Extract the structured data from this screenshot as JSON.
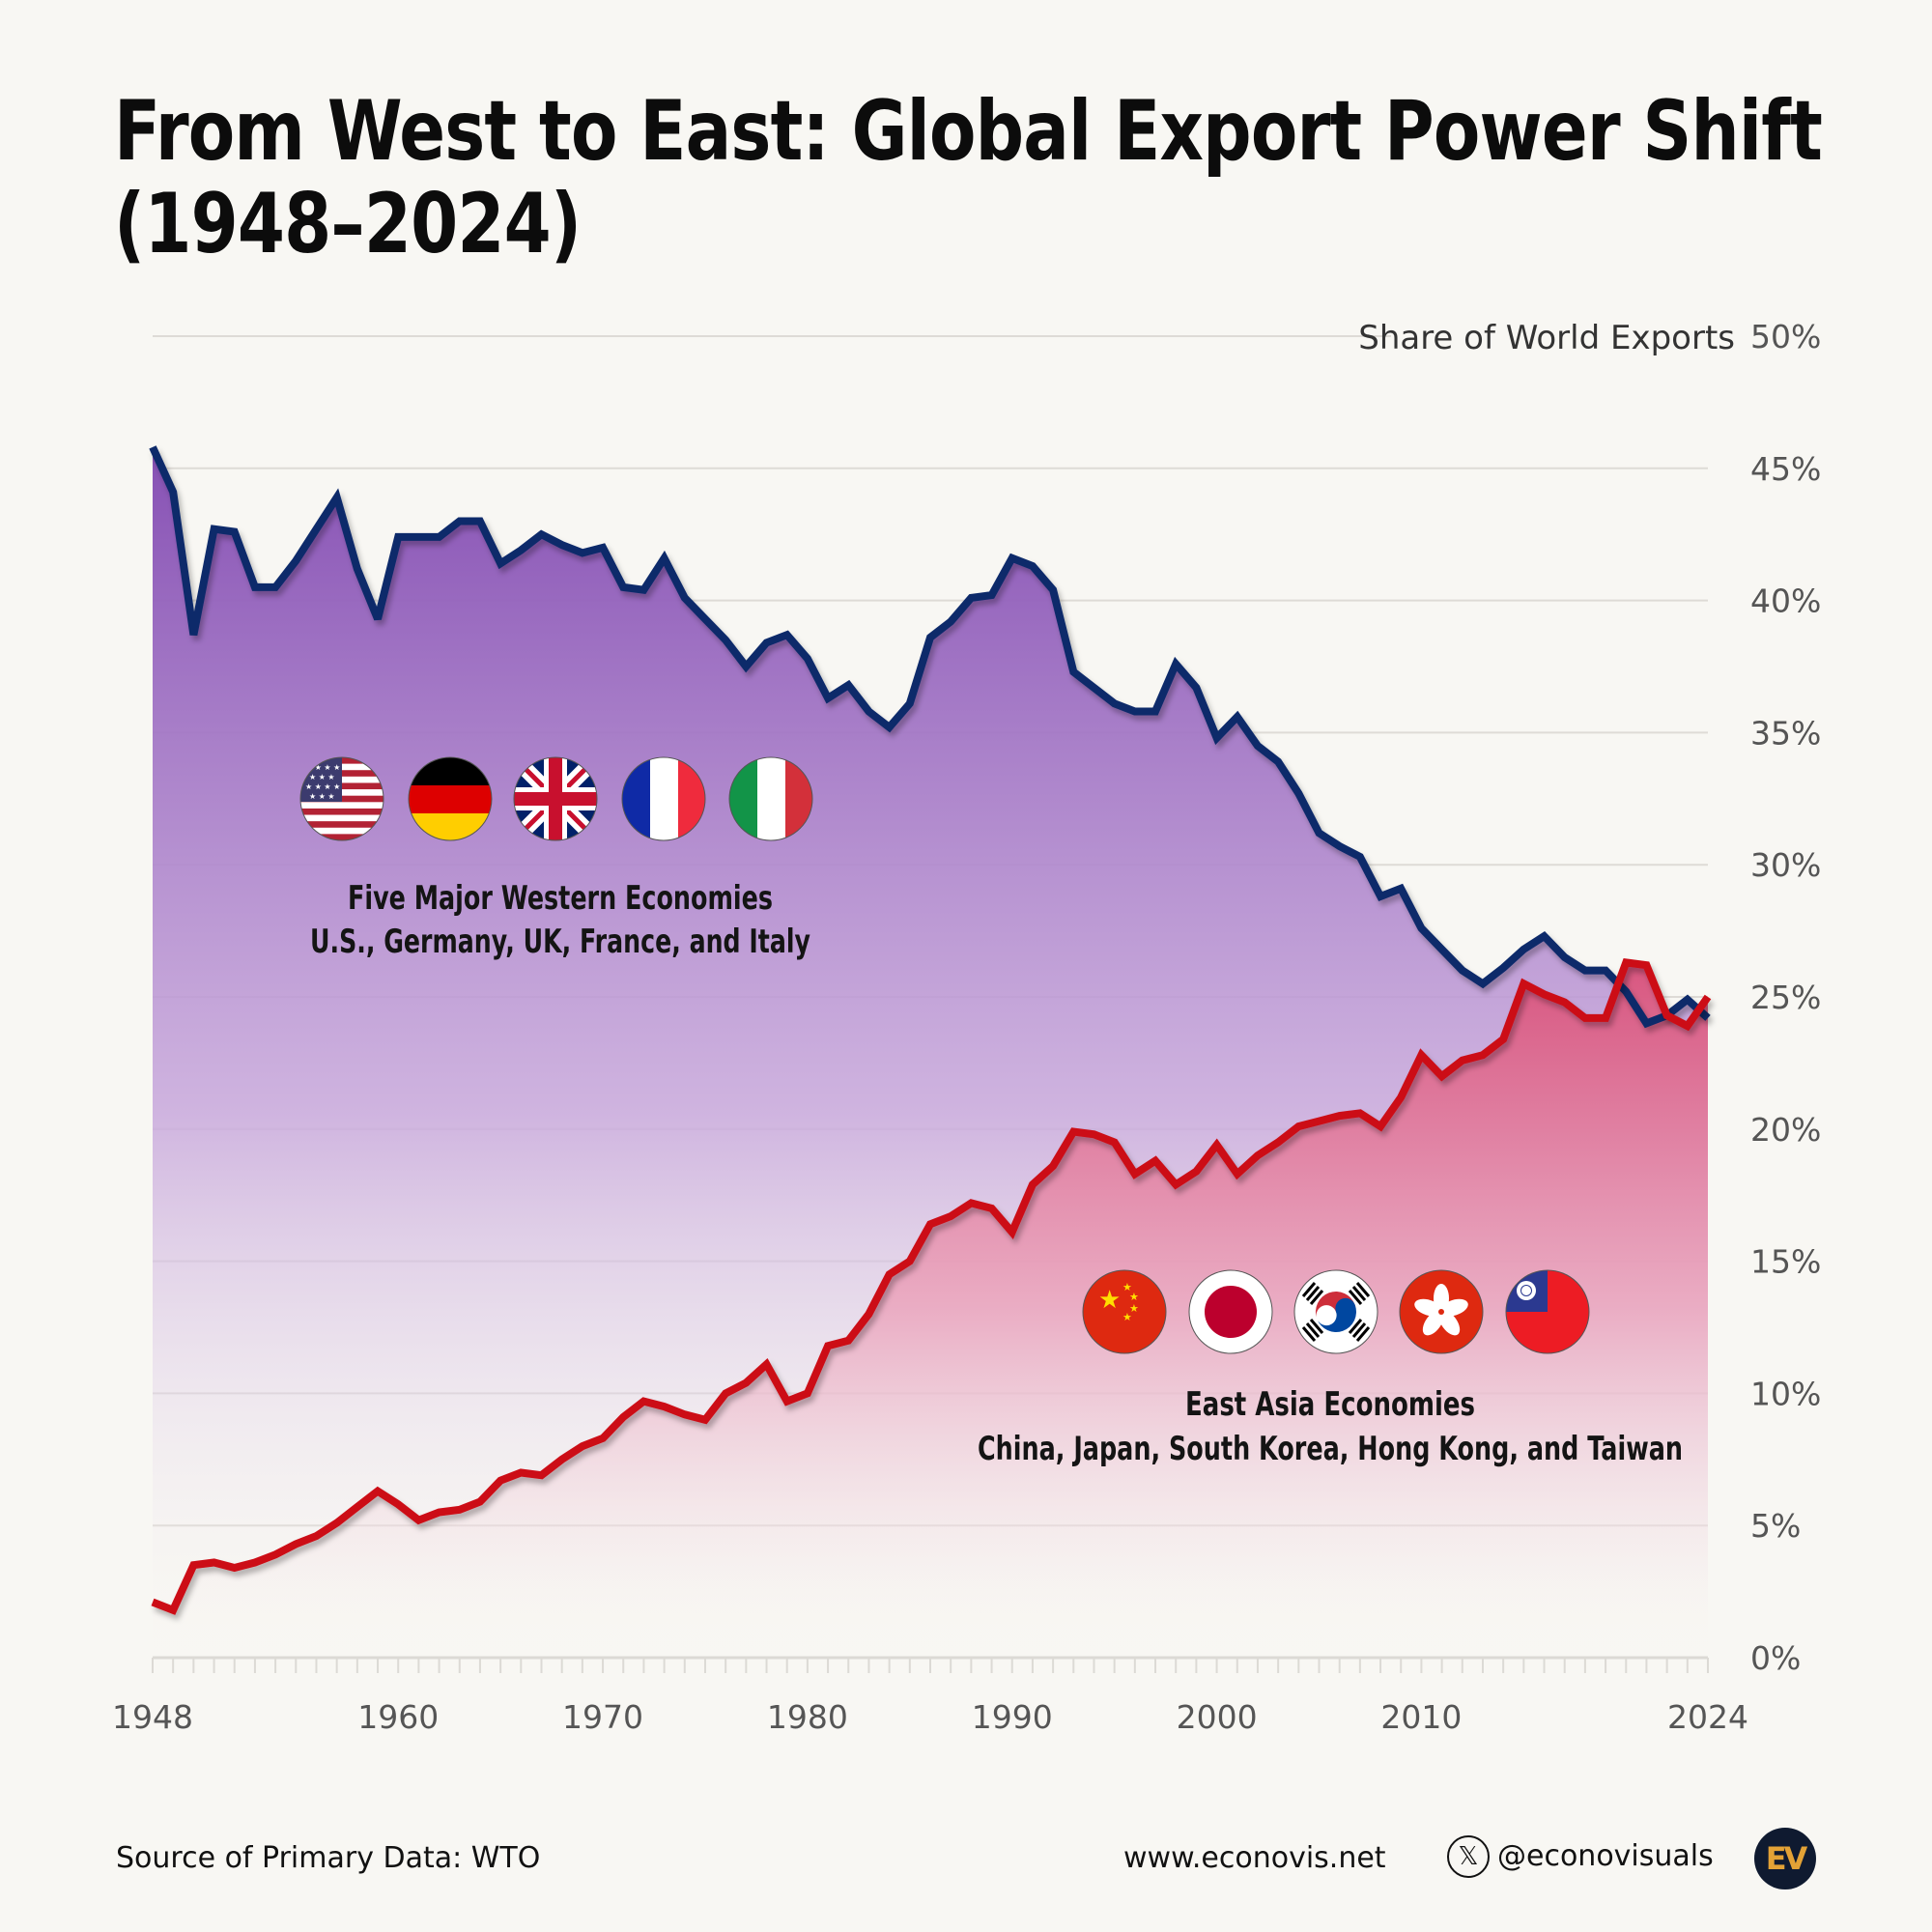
{
  "title": {
    "line1": "From West to East: Global Export Power Shift",
    "line2": "(1948–2024)"
  },
  "footer": {
    "source": "Source of Primary Data: WTO",
    "website": "www.econovis.net",
    "social_icon": "x-logo-icon",
    "social_handle": "@econovisuals",
    "logo_text": "EV",
    "logo_colors": {
      "background": "#0f1a30",
      "letters": "#e3a236"
    }
  },
  "annotations": {
    "west": {
      "flags": [
        "us-flag-icon",
        "germany-flag-icon",
        "uk-flag-icon",
        "france-flag-icon",
        "italy-flag-icon"
      ],
      "heading": "Five Major Western Economies",
      "subheading": "U.S., Germany, UK, France, and Italy"
    },
    "east": {
      "flags": [
        "china-flag-icon",
        "japan-flag-icon",
        "south-korea-flag-icon",
        "hong-kong-flag-icon",
        "taiwan-flag-icon"
      ],
      "heading": "East Asia Economies",
      "subheading": "China, Japan, South Korea, Hong Kong, and Taiwan"
    }
  },
  "colors": {
    "background": "#f8f7f3",
    "west_line": "#0e2a6b",
    "west_fill_top": "#8650b4",
    "east_line": "#cc0a14",
    "east_fill_top": "#d8557f",
    "grid": "#dedbd6",
    "tick_text": "#555555"
  },
  "chart_data": {
    "type": "area",
    "title": "From West to East: Global Export Power Shift (1948–2024)",
    "xlabel": "",
    "ylabel": "Share of World Exports",
    "xlim": [
      1948,
      2024
    ],
    "ylim": [
      0,
      50
    ],
    "x_ticks": [
      1948,
      1960,
      1970,
      1980,
      1990,
      2000,
      2010,
      2024
    ],
    "y_ticks": [
      0,
      5,
      10,
      15,
      20,
      25,
      30,
      35,
      40,
      45,
      50
    ],
    "y_tick_suffix": "%",
    "grid": true,
    "y_axis_position": "right",
    "x": [
      1948,
      1949,
      1950,
      1951,
      1952,
      1953,
      1954,
      1955,
      1956,
      1957,
      1958,
      1959,
      1960,
      1961,
      1962,
      1963,
      1964,
      1965,
      1966,
      1967,
      1968,
      1969,
      1970,
      1971,
      1972,
      1973,
      1974,
      1975,
      1976,
      1977,
      1978,
      1979,
      1980,
      1981,
      1982,
      1983,
      1984,
      1985,
      1986,
      1987,
      1988,
      1989,
      1990,
      1991,
      1992,
      1993,
      1994,
      1995,
      1996,
      1997,
      1998,
      1999,
      2000,
      2001,
      2002,
      2003,
      2004,
      2005,
      2006,
      2007,
      2008,
      2009,
      2010,
      2011,
      2012,
      2013,
      2014,
      2015,
      2016,
      2017,
      2018,
      2019,
      2020,
      2021,
      2022,
      2023,
      2024
    ],
    "series": [
      {
        "name": "Five Major Western Economies",
        "values": [
          45.8,
          44.1,
          38.7,
          42.7,
          42.6,
          40.5,
          40.5,
          41.5,
          42.7,
          43.9,
          41.2,
          39.3,
          42.4,
          42.4,
          42.4,
          43.0,
          43.0,
          41.4,
          41.9,
          42.5,
          42.1,
          41.8,
          42.0,
          40.5,
          40.4,
          41.6,
          40.1,
          39.3,
          38.5,
          37.5,
          38.4,
          38.7,
          37.8,
          36.3,
          36.8,
          35.8,
          35.2,
          36.1,
          38.6,
          39.2,
          40.1,
          40.2,
          41.6,
          41.3,
          40.4,
          37.3,
          36.7,
          36.1,
          35.8,
          35.8,
          37.6,
          36.7,
          34.8,
          35.6,
          34.5,
          33.9,
          32.7,
          31.2,
          30.7,
          30.3,
          28.8,
          29.1,
          27.6,
          26.8,
          26.0,
          25.5,
          26.1,
          26.8,
          27.3,
          26.5,
          26.0,
          26.0,
          25.2,
          24.0,
          24.3,
          24.9,
          24.2
        ]
      },
      {
        "name": "East Asia Economies",
        "values": [
          2.1,
          1.8,
          3.5,
          3.6,
          3.4,
          3.6,
          3.9,
          4.3,
          4.6,
          5.1,
          5.7,
          6.3,
          5.8,
          5.2,
          5.5,
          5.6,
          5.9,
          6.7,
          7.0,
          6.9,
          7.5,
          8.0,
          8.3,
          9.1,
          9.7,
          9.5,
          9.2,
          9.0,
          10.0,
          10.4,
          11.1,
          9.7,
          10.0,
          11.8,
          12.0,
          13.0,
          14.5,
          15.0,
          16.4,
          16.7,
          17.2,
          17.0,
          16.1,
          17.9,
          18.6,
          19.9,
          19.8,
          19.5,
          18.3,
          18.8,
          17.9,
          18.4,
          19.4,
          18.3,
          19.0,
          19.5,
          20.1,
          20.3,
          20.5,
          20.6,
          20.1,
          21.2,
          22.8,
          22.0,
          22.6,
          22.8,
          23.4,
          25.5,
          25.1,
          24.8,
          24.2,
          24.2,
          26.3,
          26.2,
          24.3,
          23.9,
          25.0
        ]
      }
    ]
  }
}
